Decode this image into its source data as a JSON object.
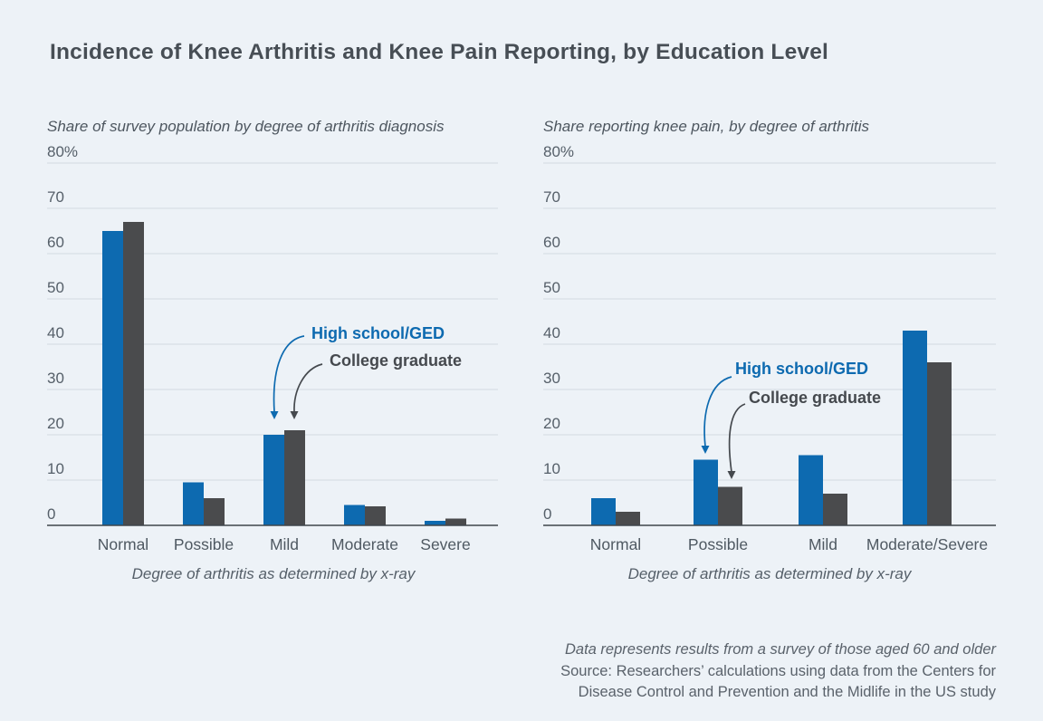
{
  "title": "Incidence of Knee Arthritis and Knee Pain Reporting, by Education Level",
  "colors": {
    "background": "#edf2f7",
    "highschool_bar": "#0d6ab0",
    "college_bar": "#4a4b4d",
    "gridline": "#d2d9e0",
    "axis": "#3f464c",
    "tick_text": "#555f69",
    "label_text": "#4f5962",
    "title_text": "#474e55",
    "annotation_college_text": "#45494e"
  },
  "legend": {
    "highschool_label": "High school/GED",
    "college_label": "College graduate"
  },
  "footnote": {
    "line1": "Data represents results from a survey of those aged 60 and older",
    "line2": "Source: Researchers’ calculations using data from the Centers for",
    "line3": "Disease Control and Prevention and the Midlife in the US study"
  },
  "chart_data": [
    {
      "type": "bar",
      "title": "Share of survey population by degree of arthritis diagnosis",
      "categories": [
        "Normal",
        "Possible",
        "Mild",
        "Moderate",
        "Severe"
      ],
      "series": [
        {
          "name": "High school/GED",
          "values": [
            65,
            9.5,
            20,
            4.5,
            1
          ]
        },
        {
          "name": "College graduate",
          "values": [
            67,
            6,
            21,
            4.2,
            1.5
          ]
        }
      ],
      "xlabel": "Degree of arthritis as determined by x-ray",
      "ylabel": "",
      "ylim": [
        0,
        80
      ],
      "ytick_step": 10,
      "ytick_top_label": "80%",
      "grid": "horizontal",
      "legend_position": "annotated-arrows",
      "annotation_target_category": "Mild"
    },
    {
      "type": "bar",
      "title": "Share reporting knee pain, by degree of arthritis",
      "categories": [
        "Normal",
        "Possible",
        "Mild",
        "Moderate/Severe"
      ],
      "series": [
        {
          "name": "High school/GED",
          "values": [
            6,
            14.5,
            15.5,
            43
          ]
        },
        {
          "name": "College graduate",
          "values": [
            3,
            8.5,
            7,
            36
          ]
        }
      ],
      "xlabel": "Degree of arthritis as determined by x-ray",
      "ylabel": "",
      "ylim": [
        0,
        80
      ],
      "ytick_step": 10,
      "ytick_top_label": "80%",
      "grid": "horizontal",
      "legend_position": "annotated-arrows",
      "annotation_target_category": "Possible"
    }
  ]
}
